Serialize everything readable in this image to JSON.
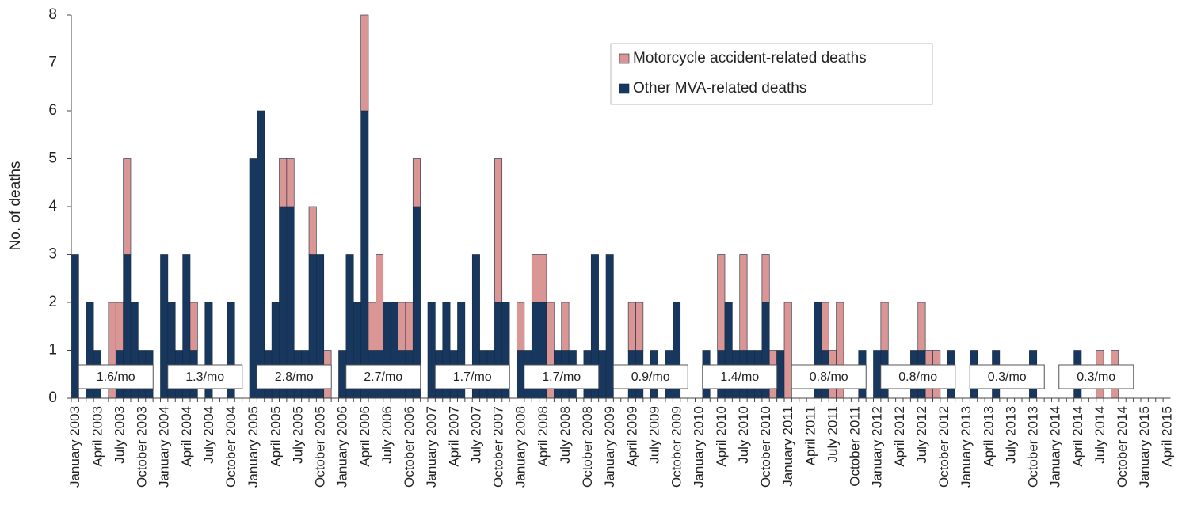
{
  "chart_data": {
    "type": "bar",
    "stacked": true,
    "y_label": "No. of deaths",
    "categories": [
      "January 2003",
      null,
      null,
      "April 2003",
      null,
      null,
      "July 2003",
      null,
      null,
      "October 2003",
      null,
      null,
      "January 2004",
      null,
      null,
      "April 2004",
      null,
      null,
      "July 2004",
      null,
      null,
      "October 2004",
      null,
      null,
      "January 2005",
      null,
      null,
      "April 2005",
      null,
      null,
      "July 2005",
      null,
      null,
      "October 2005",
      null,
      null,
      "January 2006",
      null,
      null,
      "April 2006",
      null,
      null,
      "July 2006",
      null,
      null,
      "October 2006",
      null,
      null,
      "January 2007",
      null,
      null,
      "April 2007",
      null,
      null,
      "July 2007",
      null,
      null,
      "October 2007",
      null,
      null,
      "January 2008",
      null,
      null,
      "April 2008",
      null,
      null,
      "July 2008",
      null,
      null,
      "October 2008",
      null,
      null,
      "January 2009",
      null,
      null,
      "April 2009",
      null,
      null,
      "July 2009",
      null,
      null,
      "October 2009",
      null,
      null,
      "January 2010",
      null,
      null,
      "April 2010",
      null,
      null,
      "July 2010",
      null,
      null,
      "October 2010",
      null,
      null,
      "January 2011",
      null,
      null,
      "April 2011",
      null,
      null,
      "July 2011",
      null,
      null,
      "October 2011",
      null,
      null,
      "January 2012",
      null,
      null,
      "April 2012",
      null,
      null,
      "July 2012",
      null,
      null,
      "October 2012",
      null,
      null,
      "January 2013",
      null,
      null,
      "April 2013",
      null,
      null,
      "July 2013",
      null,
      null,
      "October 2013",
      null,
      null,
      "January 2014",
      null,
      null,
      "April 2014",
      null,
      null,
      "July 2014",
      null,
      null,
      "October 2014",
      null,
      null,
      "January 2015",
      null,
      null,
      "April 2015"
    ],
    "series": [
      {
        "name": "Motorcycle accident-related deaths",
        "color": "#d99694",
        "values": [
          0,
          0,
          0,
          0,
          0,
          2,
          1,
          2,
          0,
          0,
          0,
          0,
          0,
          0,
          0,
          0,
          1,
          0,
          0,
          0,
          0,
          0,
          0,
          0,
          0,
          0,
          0,
          0,
          1,
          1,
          0,
          0,
          1,
          0,
          1,
          0,
          0,
          0,
          0,
          2,
          1,
          2,
          0,
          0,
          1,
          1,
          1,
          0,
          0,
          0,
          0,
          0,
          0,
          0,
          0,
          0,
          0,
          3,
          0,
          0,
          1,
          0,
          1,
          1,
          2,
          0,
          1,
          0,
          0,
          0,
          0,
          0,
          0,
          0,
          0,
          1,
          1,
          0,
          0,
          0,
          0,
          0,
          0,
          0,
          0,
          0,
          0,
          2,
          0,
          0,
          2,
          0,
          0,
          1,
          1,
          0,
          2,
          0,
          0,
          0,
          0,
          1,
          1,
          2,
          0,
          0,
          0,
          0,
          0,
          1,
          0,
          0,
          0,
          0,
          1,
          1,
          1,
          0,
          0,
          0,
          0,
          0,
          0,
          0,
          0,
          0,
          0,
          0,
          0,
          0,
          0,
          0,
          0,
          0,
          0,
          0,
          0,
          0,
          1,
          0,
          1,
          0,
          0,
          0,
          0,
          0,
          0,
          0
        ]
      },
      {
        "name": "Other MVA-related deaths",
        "color": "#17375e",
        "values": [
          3,
          0,
          2,
          1,
          0,
          0,
          1,
          3,
          2,
          1,
          1,
          0,
          3,
          2,
          1,
          3,
          1,
          0,
          2,
          0,
          0,
          2,
          0,
          0,
          5,
          6,
          1,
          2,
          4,
          4,
          1,
          1,
          3,
          3,
          0,
          0,
          1,
          3,
          2,
          6,
          1,
          1,
          2,
          2,
          1,
          1,
          4,
          0,
          2,
          1,
          2,
          1,
          2,
          0,
          3,
          1,
          1,
          2,
          2,
          0,
          1,
          1,
          2,
          2,
          0,
          1,
          1,
          1,
          0,
          1,
          3,
          1,
          3,
          0,
          0,
          1,
          1,
          0,
          1,
          0,
          1,
          2,
          0,
          0,
          0,
          1,
          0,
          1,
          2,
          1,
          1,
          1,
          1,
          2,
          0,
          1,
          0,
          0,
          0,
          0,
          2,
          1,
          0,
          0,
          0,
          0,
          1,
          0,
          1,
          1,
          0,
          0,
          0,
          1,
          1,
          0,
          0,
          0,
          1,
          0,
          0,
          1,
          0,
          0,
          1,
          0,
          0,
          0,
          0,
          1,
          0,
          0,
          0,
          0,
          0,
          1,
          0,
          0,
          0,
          0,
          0,
          0,
          0,
          0,
          0,
          0,
          0,
          0
        ]
      }
    ],
    "annotations": [
      "1.6/mo",
      "1.3/mo",
      "2.8/mo",
      "2.7/mo",
      "1.7/mo",
      "1.7/mo",
      "0.9/mo",
      "1.4/mo",
      "0.8/mo",
      "0.8/mo",
      "0.3/mo",
      "0.3/mo"
    ],
    "ylim": [
      0,
      8
    ],
    "yticks": [
      0,
      1,
      2,
      3,
      4,
      5,
      6,
      7,
      8
    ],
    "grid": false
  }
}
